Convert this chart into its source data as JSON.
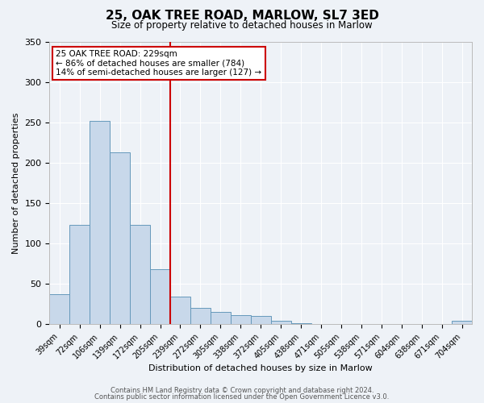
{
  "title": "25, OAK TREE ROAD, MARLOW, SL7 3ED",
  "subtitle": "Size of property relative to detached houses in Marlow",
  "xlabel": "Distribution of detached houses by size in Marlow",
  "ylabel": "Number of detached properties",
  "bin_labels": [
    "39sqm",
    "72sqm",
    "106sqm",
    "139sqm",
    "172sqm",
    "205sqm",
    "239sqm",
    "272sqm",
    "305sqm",
    "338sqm",
    "372sqm",
    "405sqm",
    "438sqm",
    "471sqm",
    "505sqm",
    "538sqm",
    "571sqm",
    "604sqm",
    "638sqm",
    "671sqm",
    "704sqm"
  ],
  "bar_heights": [
    37,
    123,
    252,
    213,
    123,
    68,
    34,
    20,
    15,
    11,
    10,
    4,
    1,
    0,
    0,
    0,
    0,
    0,
    0,
    0,
    4
  ],
  "bar_color": "#c8d8ea",
  "bar_edge_color": "#6699bb",
  "ylim": [
    0,
    350
  ],
  "yticks": [
    0,
    50,
    100,
    150,
    200,
    250,
    300,
    350
  ],
  "property_line_x": 6,
  "property_line_color": "#cc0000",
  "annotation_title": "25 OAK TREE ROAD: 229sqm",
  "annotation_line1": "← 86% of detached houses are smaller (784)",
  "annotation_line2": "14% of semi-detached houses are larger (127) →",
  "annotation_box_color": "#ffffff",
  "annotation_box_edge": "#cc0000",
  "footer1": "Contains HM Land Registry data © Crown copyright and database right 2024.",
  "footer2": "Contains public sector information licensed under the Open Government Licence v3.0.",
  "background_color": "#eef2f7",
  "grid_color": "#ffffff"
}
